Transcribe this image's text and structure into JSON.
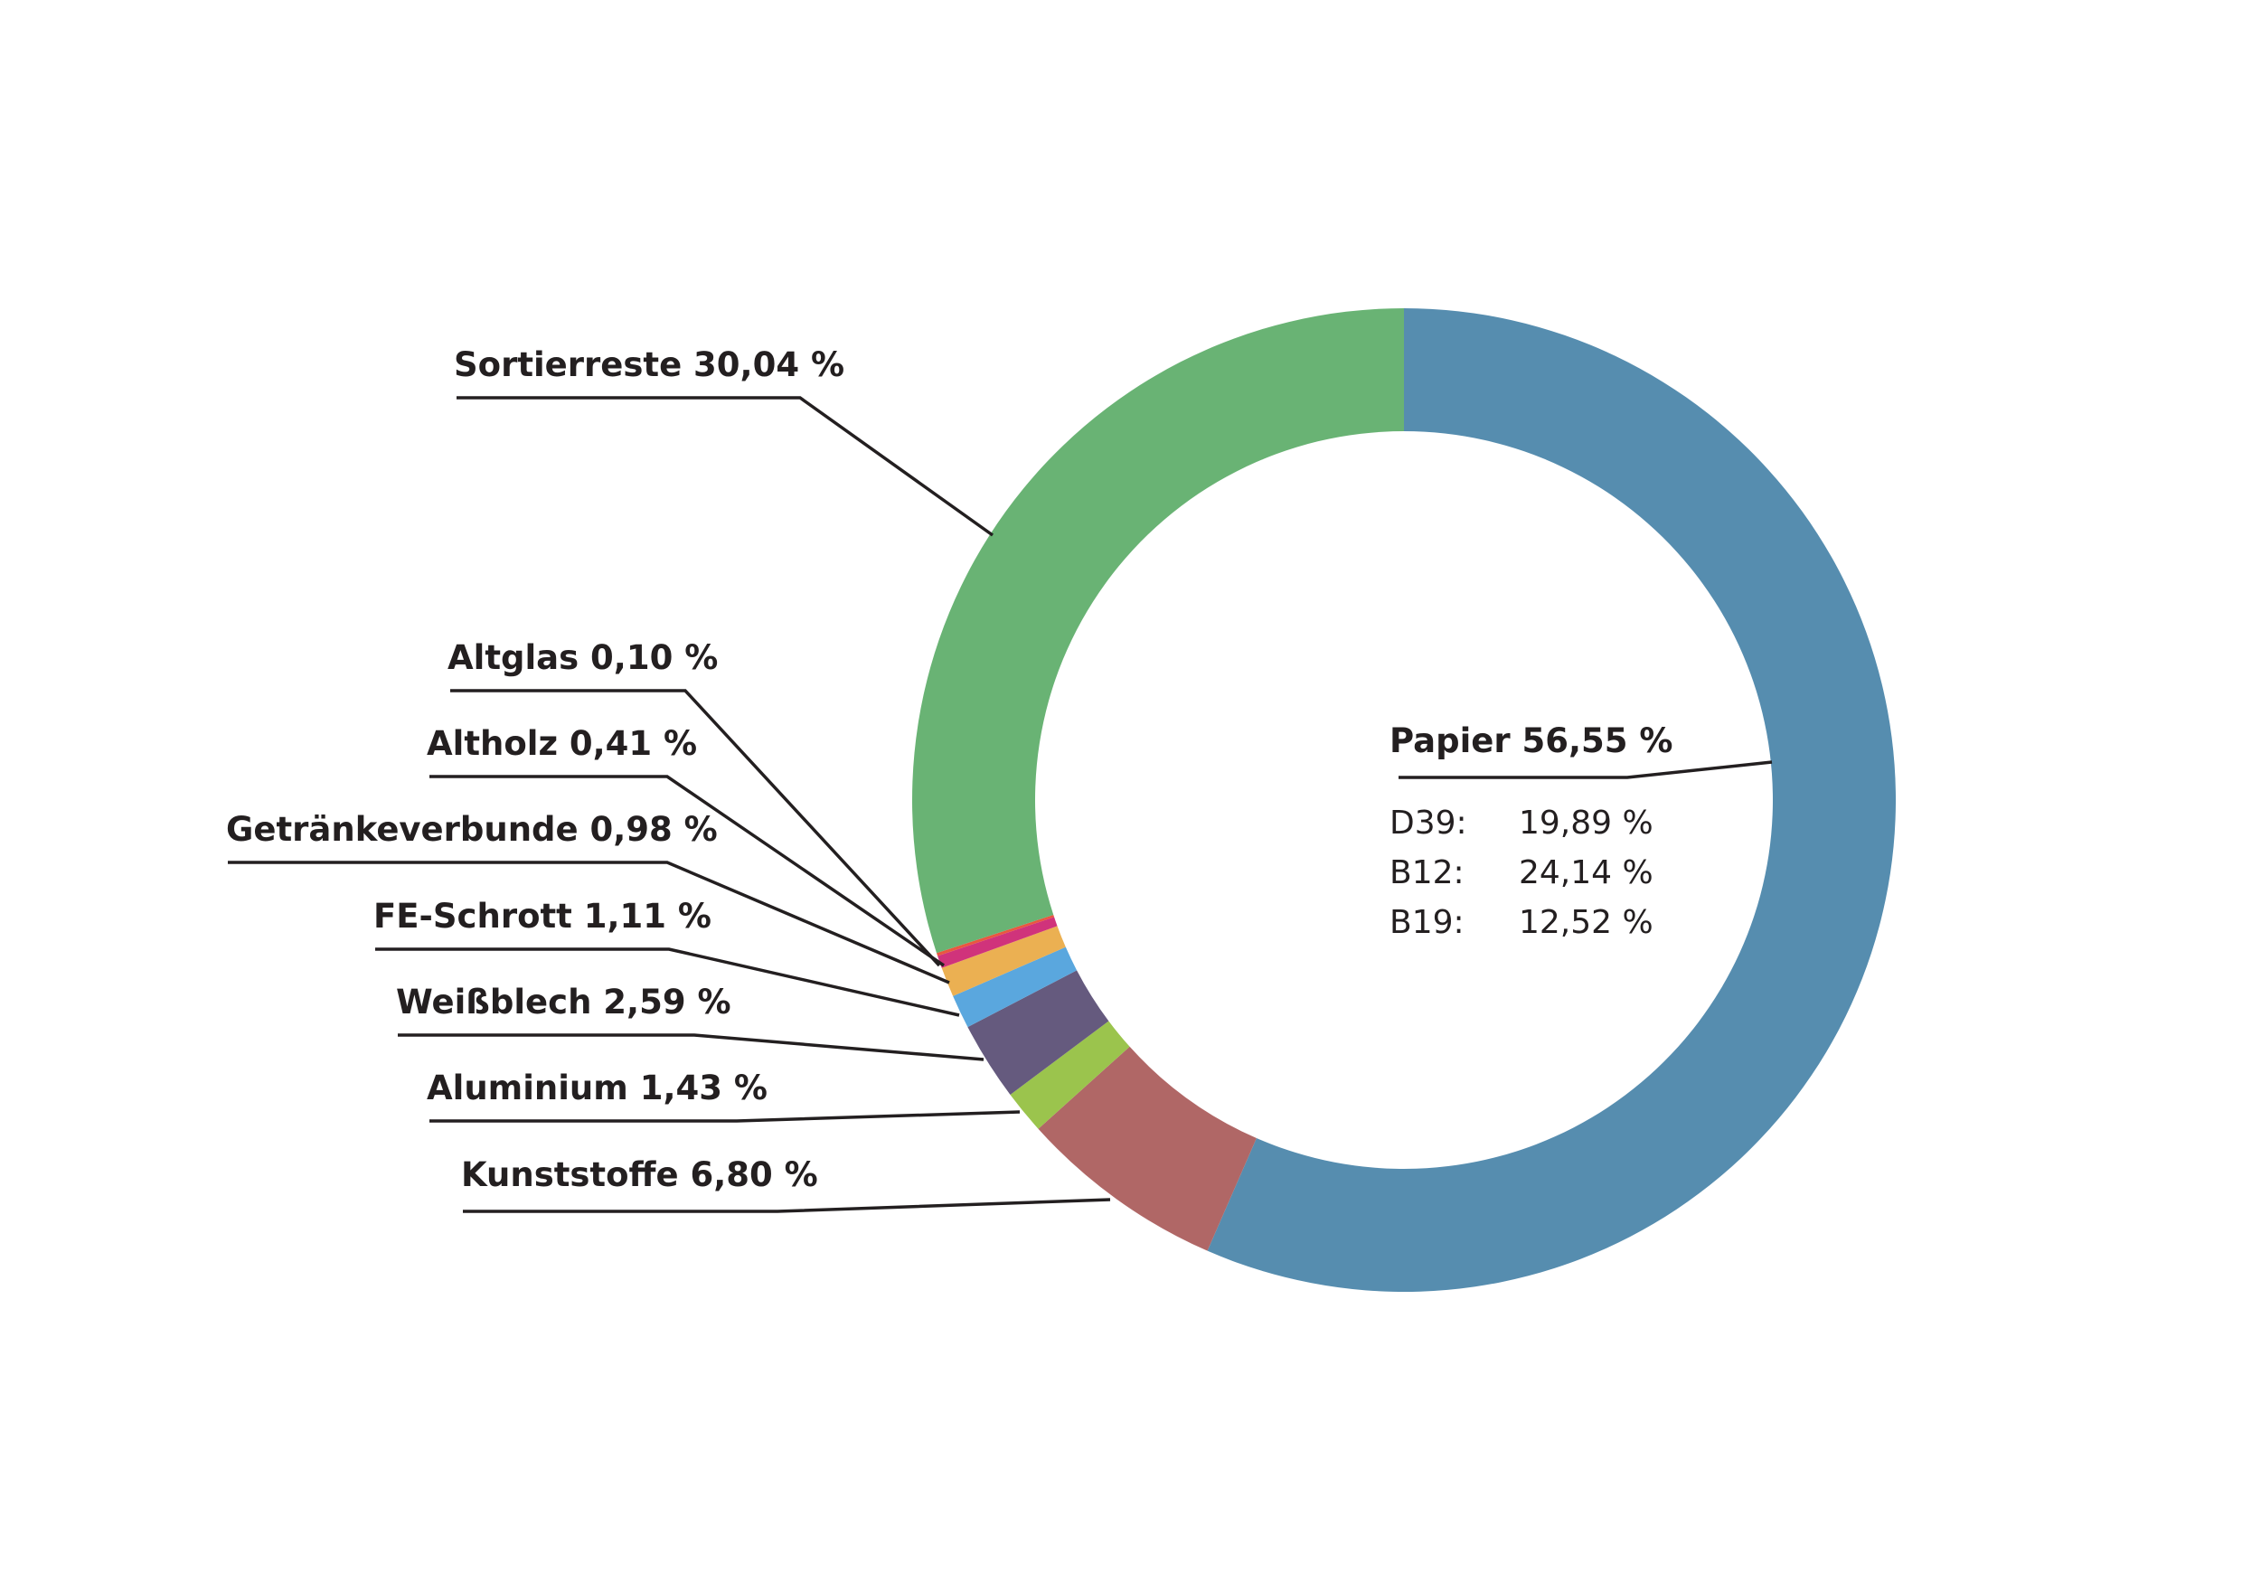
{
  "chart_data": {
    "type": "pie",
    "subtype": "donut",
    "direction": "clockwise",
    "start": "top",
    "series": [
      {
        "name": "Papier",
        "value": 56.55,
        "label": "Papier  56,55 %",
        "color": "#568daf"
      },
      {
        "name": "Kunststoffe",
        "value": 6.8,
        "label": "Kunststoffe 6,80 %",
        "color": "#b06766"
      },
      {
        "name": "Aluminium",
        "value": 1.43,
        "label": "Aluminium 1,43 %",
        "color": "#9bc44d"
      },
      {
        "name": "Weißblech",
        "value": 2.59,
        "label": "Weißblech 2,59 %",
        "color": "#655a7e"
      },
      {
        "name": "FE-Schrott",
        "value": 1.11,
        "label": "FE-Schrott 1,11 %",
        "color": "#5aa7de"
      },
      {
        "name": "Getränkeverbunde",
        "value": 0.98,
        "label": "Getränkeverbunde 0,98 %",
        "color": "#ebb052"
      },
      {
        "name": "Altholz",
        "value": 0.41,
        "label": "Altholz 0,41 %",
        "color": "#d0337b"
      },
      {
        "name": "Altglas",
        "value": 0.1,
        "label": "Altglas 0,10 %",
        "color": "#e9573f"
      },
      {
        "name": "Sortierreste",
        "value": 30.04,
        "label": "Sortierreste 30,04 %",
        "color": "#69b374"
      }
    ],
    "papier_breakdown": [
      {
        "code": "D39:",
        "value": "19,89 %"
      },
      {
        "code": "B12:",
        "value": "24,14 %"
      },
      {
        "code": "B19:",
        "value": "12,52 %"
      }
    ]
  }
}
